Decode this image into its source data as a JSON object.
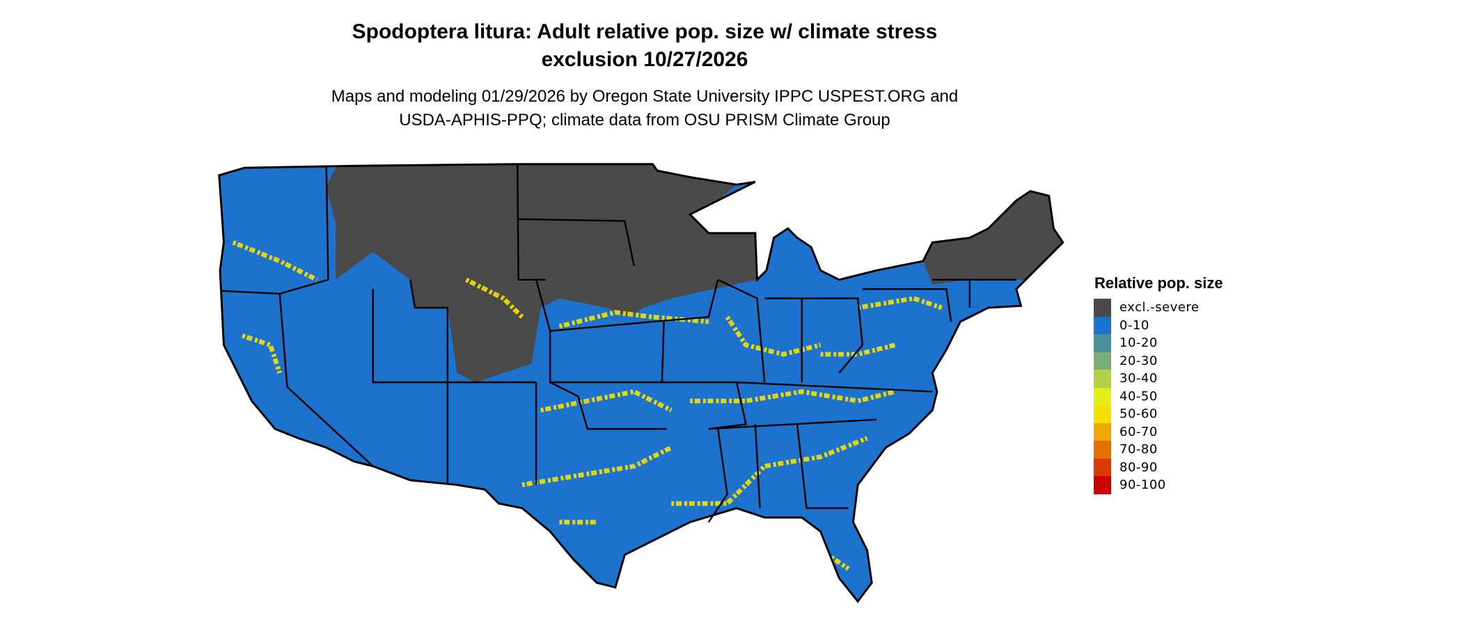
{
  "title": {
    "line1": "Spodoptera litura: Adult relative pop. size w/ climate stress",
    "line2": "exclusion 10/27/2026"
  },
  "subtitle": {
    "line1": "Maps and modeling 01/29/2026 by Oregon State University IPPC USPEST.ORG and",
    "line2": "USDA-APHIS-PPQ; climate data from OSU PRISM Climate Group"
  },
  "map": {
    "region": "Contiguous United States",
    "colors": {
      "excluded": "#4a4a4a",
      "low": "#1c72cc",
      "hotspot": "#f7e000",
      "border": "#000000"
    }
  },
  "legend": {
    "title": "Relative pop. size",
    "items": [
      {
        "label": "excl.-severe",
        "color": "#4a4a4a"
      },
      {
        "label": "0-10",
        "color": "#1c72cc"
      },
      {
        "label": "10-20",
        "color": "#4a8f9c"
      },
      {
        "label": "20-30",
        "color": "#7aae74"
      },
      {
        "label": "30-40",
        "color": "#b2d145"
      },
      {
        "label": "40-50",
        "color": "#e4ee17"
      },
      {
        "label": "50-60",
        "color": "#f7e000"
      },
      {
        "label": "60-70",
        "color": "#eeaa00"
      },
      {
        "label": "70-80",
        "color": "#e37000"
      },
      {
        "label": "80-90",
        "color": "#da3800"
      },
      {
        "label": "90-100",
        "color": "#cc0000"
      }
    ]
  }
}
